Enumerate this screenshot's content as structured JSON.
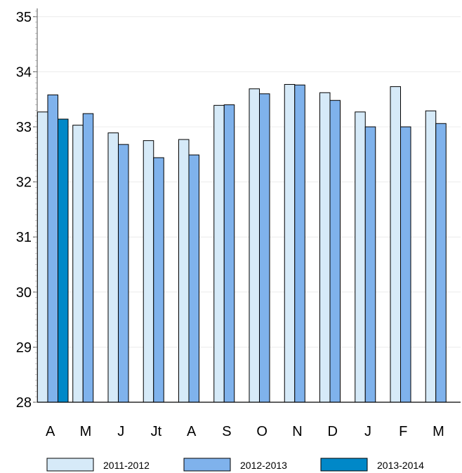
{
  "chart_data": {
    "type": "bar",
    "categories": [
      "A",
      "M",
      "J",
      "Jt",
      "A",
      "S",
      "O",
      "N",
      "D",
      "J",
      "F",
      "M"
    ],
    "series": [
      {
        "name": "2011-2012",
        "color": "#d6eaf8",
        "values": [
          33.27,
          33.03,
          32.89,
          32.75,
          32.77,
          33.39,
          33.69,
          33.77,
          33.62,
          33.27,
          33.73,
          33.29
        ]
      },
      {
        "name": "2012-2013",
        "color": "#7fb2ec",
        "values": [
          33.58,
          33.24,
          32.68,
          32.44,
          32.49,
          33.4,
          33.6,
          33.76,
          33.48,
          33.0,
          33.0,
          33.06
        ]
      },
      {
        "name": "2013-2014",
        "color": "#0088c8",
        "values": [
          33.14,
          null,
          null,
          null,
          null,
          null,
          null,
          null,
          null,
          null,
          null,
          null
        ]
      }
    ],
    "yticks": [
      "28",
      "29",
      "30",
      "31",
      "32",
      "33",
      "34",
      "35"
    ],
    "ylim": [
      28,
      35.15
    ],
    "grid": true,
    "legend": "bottom"
  }
}
